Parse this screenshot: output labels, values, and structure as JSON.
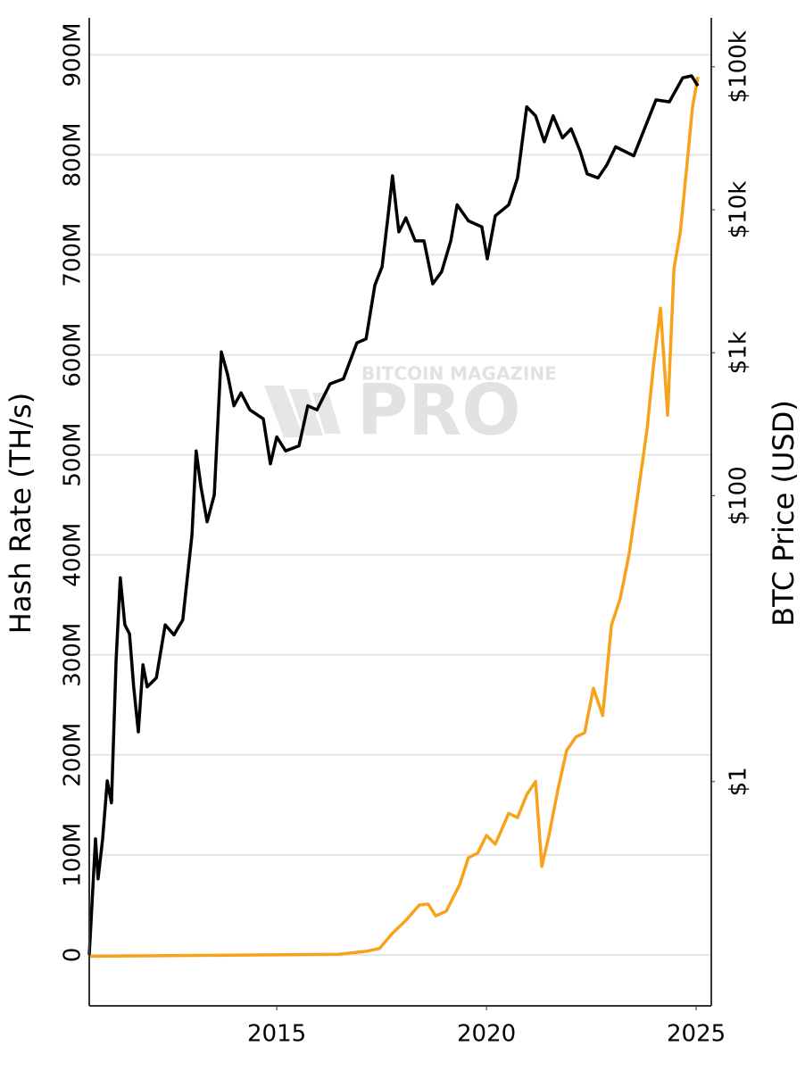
{
  "chart_data": {
    "type": "line",
    "y_label": "Hash Rate (TH/s)",
    "y2_label": "BTC Price (USD)",
    "watermark": [
      "BITCOIN MAGAZINE",
      "PRO"
    ],
    "xlim": [
      2010.53,
      2025.36
    ],
    "xticks": [
      2015,
      2020,
      2025
    ],
    "ylim": [
      -51000000,
      937000000
    ],
    "yticks": [
      0,
      {
        "value": 100000000,
        "label": "100M"
      },
      {
        "value": 200000000,
        "label": "200M"
      },
      {
        "value": 300000000,
        "label": "300M"
      },
      {
        "value": 400000000,
        "label": "400M"
      },
      {
        "value": 500000000,
        "label": "500M"
      },
      {
        "value": 600000000,
        "label": "600M"
      },
      {
        "value": 700000000,
        "label": "700M"
      },
      {
        "value": 800000000,
        "label": "800M"
      },
      {
        "value": 900000000,
        "label": "900M"
      }
    ],
    "y2lim": [
      0.027,
      220000
    ],
    "y2log": true,
    "y2ticks": [
      {
        "value": 1,
        "label": "$1"
      },
      {
        "value": 100,
        "label": "$100"
      },
      {
        "value": 1000,
        "label": "$1k"
      },
      {
        "value": 10000,
        "label": "$10k"
      },
      {
        "value": 100000,
        "label": "$100k"
      }
    ],
    "grid": true,
    "series": [
      {
        "color": "#000000",
        "x": [
          2010.53,
          2010.68,
          2010.74,
          2010.85,
          2010.96,
          2011.06,
          2011.17,
          2011.27,
          2011.38,
          2011.49,
          2011.59,
          2011.7,
          2011.81,
          2011.91,
          2012.13,
          2012.34,
          2012.55,
          2012.76,
          2012.98,
          2013.08,
          2013.19,
          2013.34,
          2013.51,
          2013.68,
          2013.83,
          2013.98,
          2014.15,
          2014.36,
          2014.68,
          2014.85,
          2015.0,
          2015.21,
          2015.53,
          2015.74,
          2015.96,
          2016.27,
          2016.59,
          2016.91,
          2017.13,
          2017.34,
          2017.51,
          2017.66,
          2017.76,
          2017.91,
          2018.08,
          2018.3,
          2018.51,
          2018.72,
          2018.93,
          2019.15,
          2019.3,
          2019.57,
          2019.89,
          2020.02,
          2020.21,
          2020.53,
          2020.74,
          2020.96,
          2021.17,
          2021.38,
          2021.59,
          2021.81,
          2022.02,
          2022.23,
          2022.4,
          2022.66,
          2022.87,
          2023.08,
          2023.51,
          2023.72,
          2024.04,
          2024.36,
          2024.68,
          2024.89,
          2025.04
        ],
        "values": [
          0,
          116000000,
          76000000,
          116000000,
          174000000,
          152000000,
          295000000,
          377000000,
          330000000,
          321000000,
          268000000,
          223000000,
          290000000,
          268000000,
          277000000,
          330000000,
          320000000,
          335000000,
          420000000,
          504000000,
          469000000,
          433000000,
          460000000,
          603000000,
          580000000,
          549000000,
          562000000,
          545000000,
          536000000,
          491000000,
          518000000,
          504000000,
          509000000,
          549000000,
          545000000,
          571000000,
          576000000,
          612000000,
          616000000,
          670000000,
          688000000,
          741000000,
          779000000,
          723000000,
          737000000,
          714000000,
          714000000,
          671000000,
          683000000,
          714000000,
          750000000,
          734000000,
          728000000,
          696000000,
          739000000,
          750000000,
          777000000,
          848000000,
          839000000,
          813000000,
          839000000,
          817000000,
          826000000,
          804000000,
          781000000,
          777000000,
          790000000,
          808000000,
          799000000,
          821000000,
          855000000,
          853000000,
          877000000,
          879000000,
          869000000
        ]
      },
      {
        "color": "#f7a21b",
        "axis": "y2",
        "x": [
          2010.53,
          2016.49,
          2017.13,
          2017.45,
          2017.76,
          2018.08,
          2018.4,
          2018.61,
          2018.79,
          2019.04,
          2019.36,
          2019.57,
          2019.79,
          2020.0,
          2020.21,
          2020.53,
          2020.74,
          2020.96,
          2021.17,
          2021.32,
          2021.49,
          2021.7,
          2021.91,
          2022.13,
          2022.34,
          2022.55,
          2022.77,
          2022.98,
          2023.19,
          2023.4,
          2023.62,
          2023.83,
          2023.98,
          2024.15,
          2024.32,
          2024.47,
          2024.62,
          2024.79,
          2024.91,
          2025.04
        ],
        "values": [
          0.06,
          0.062,
          0.065,
          0.068,
          0.087,
          0.107,
          0.137,
          0.139,
          0.115,
          0.124,
          0.19,
          0.294,
          0.316,
          0.42,
          0.365,
          0.6,
          0.56,
          0.81,
          1.0,
          0.255,
          0.42,
          0.87,
          1.65,
          2.05,
          2.2,
          4.5,
          2.9,
          12.4,
          19.1,
          39,
          107,
          293,
          800,
          2050,
          365,
          3900,
          6900,
          22000,
          52000,
          85000
        ]
      }
    ]
  }
}
